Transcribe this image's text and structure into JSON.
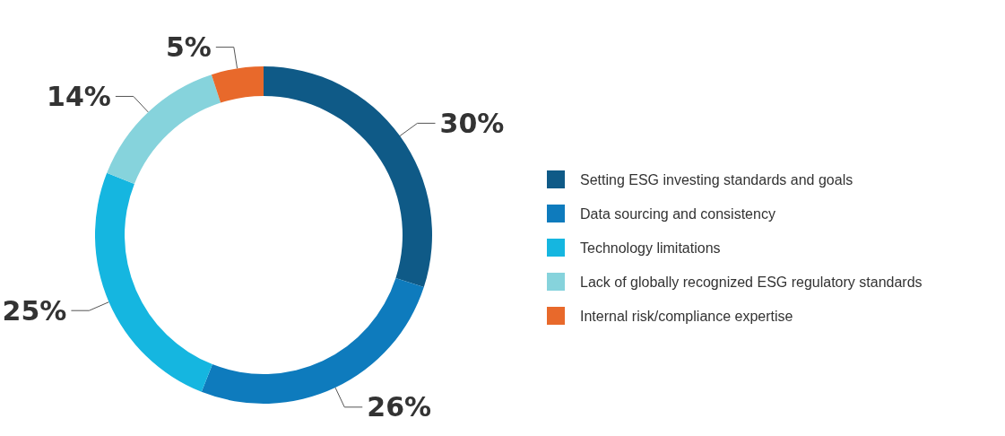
{
  "chart_data": {
    "type": "donut",
    "categories": [
      "Setting ESG investing standards and goals",
      "Data sourcing and consistency",
      "Technology limitations",
      "Lack of globally recognized ESG regulatory standards",
      "Internal risk/compliance expertise"
    ],
    "values": [
      30,
      26,
      25,
      14,
      5
    ],
    "value_labels": [
      "30%",
      "26%",
      "25%",
      "14%",
      "5%"
    ],
    "colors": [
      "#0f5a87",
      "#0e7bbd",
      "#15b6e0",
      "#86d3dc",
      "#e8692b"
    ],
    "legend": "right"
  }
}
